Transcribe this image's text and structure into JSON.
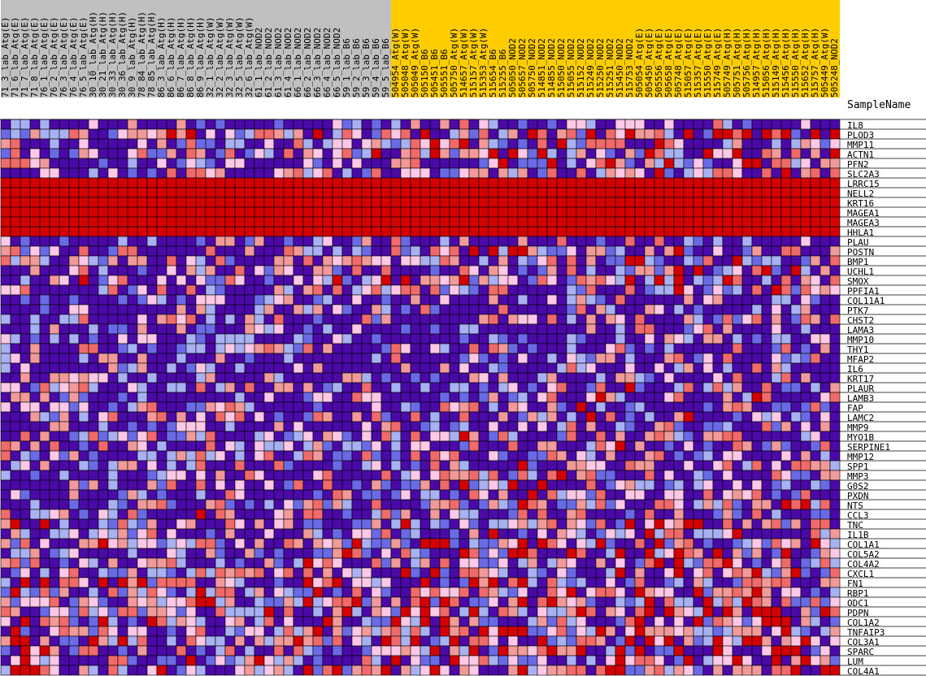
{
  "chart_data": {
    "type": "heatmap",
    "row_header": "SampleName",
    "columns": [
      {
        "name": "71_3_lab_Atg(E)",
        "group": "gray"
      },
      {
        "name": "71_6_lab_Atg(E)",
        "group": "gray"
      },
      {
        "name": "71_7_lab_Atg(E)",
        "group": "gray"
      },
      {
        "name": "71_8_lab_Atg(E)",
        "group": "gray"
      },
      {
        "name": "76_1_lab_Atg(E)",
        "group": "gray"
      },
      {
        "name": "76_2_lab_Atg(E)",
        "group": "gray"
      },
      {
        "name": "76_3_lab_Atg(E)",
        "group": "gray"
      },
      {
        "name": "76_4_lab_Atg(E)",
        "group": "gray"
      },
      {
        "name": "76_5_lab_Atg(E)",
        "group": "gray"
      },
      {
        "name": "30_10_lab_Atg(H)",
        "group": "gray"
      },
      {
        "name": "30_21_lab_Atg(H)",
        "group": "gray"
      },
      {
        "name": "30_33_lab_Atg(H)",
        "group": "gray"
      },
      {
        "name": "30_36_lab_Atg(H)",
        "group": "gray"
      },
      {
        "name": "30_9_lab_Atg(H)",
        "group": "gray"
      },
      {
        "name": "78_84_lab_Atg(H)",
        "group": "gray"
      },
      {
        "name": "78_85_lab_Atg(H)",
        "group": "gray"
      },
      {
        "name": "86_3_lab_Atg(H)",
        "group": "gray"
      },
      {
        "name": "86_6_lab_Atg(H)",
        "group": "gray"
      },
      {
        "name": "86_7_lab_Atg(H)",
        "group": "gray"
      },
      {
        "name": "86_8_lab_Atg(H)",
        "group": "gray"
      },
      {
        "name": "86_9_lab_Atg(H)",
        "group": "gray"
      },
      {
        "name": "32_1_lab_Atg(W)",
        "group": "gray"
      },
      {
        "name": "32_2_lab_Atg(W)",
        "group": "gray"
      },
      {
        "name": "32_3_lab_Atg(W)",
        "group": "gray"
      },
      {
        "name": "32_5_lab_Atg(W)",
        "group": "gray"
      },
      {
        "name": "32_6_lab_Atg(W)",
        "group": "gray"
      },
      {
        "name": "61_1_lab_NOD2",
        "group": "gray"
      },
      {
        "name": "61_2_lab_NOD2",
        "group": "gray"
      },
      {
        "name": "61_3_lab_NOD2",
        "group": "gray"
      },
      {
        "name": "61_4_lab_NOD2",
        "group": "gray"
      },
      {
        "name": "66_1_lab_NOD2",
        "group": "gray"
      },
      {
        "name": "66_2_lab_NOD2",
        "group": "gray"
      },
      {
        "name": "66_3_lab_NOD2",
        "group": "gray"
      },
      {
        "name": "66_4_lab_NOD2",
        "group": "gray"
      },
      {
        "name": "66_5_lab_NOD2",
        "group": "gray"
      },
      {
        "name": "59_1_lab_B6",
        "group": "gray"
      },
      {
        "name": "59_2_lab_B6",
        "group": "gray"
      },
      {
        "name": "59_3_lab_B6",
        "group": "gray"
      },
      {
        "name": "59_4_lab_B6",
        "group": "gray"
      },
      {
        "name": "59_5_lab_B6",
        "group": "gray"
      },
      {
        "name": "504954_Atg(W)",
        "group": "gold"
      },
      {
        "name": "505048_Atg(W)",
        "group": "gold"
      },
      {
        "name": "505049_Atg(W)",
        "group": "gold"
      },
      {
        "name": "505150_B6",
        "group": "gold"
      },
      {
        "name": "505451_B6",
        "group": "gold"
      },
      {
        "name": "505551_B6",
        "group": "gold"
      },
      {
        "name": "505750_Atg(W)",
        "group": "gold"
      },
      {
        "name": "514657_Atg(W)",
        "group": "gold"
      },
      {
        "name": "515157_Atg(W)",
        "group": "gold"
      },
      {
        "name": "515353_Atg(W)",
        "group": "gold"
      },
      {
        "name": "515654_B6",
        "group": "gold"
      },
      {
        "name": "515255_B6",
        "group": "gold"
      },
      {
        "name": "505050_NOD2",
        "group": "gold"
      },
      {
        "name": "505657_NOD2",
        "group": "gold"
      },
      {
        "name": "505750_NOD2",
        "group": "gold"
      },
      {
        "name": "514851_NOD2",
        "group": "gold"
      },
      {
        "name": "514855_NOD2",
        "group": "gold"
      },
      {
        "name": "515050_NOD2",
        "group": "gold"
      },
      {
        "name": "515055_NOD2",
        "group": "gold"
      },
      {
        "name": "515152_NOD2",
        "group": "gold"
      },
      {
        "name": "515249_NOD2",
        "group": "gold"
      },
      {
        "name": "515250_NOD2",
        "group": "gold"
      },
      {
        "name": "515251_NOD2",
        "group": "gold"
      },
      {
        "name": "515450_NOD2",
        "group": "gold"
      },
      {
        "name": "515753_NOD2",
        "group": "gold"
      },
      {
        "name": "505054_Atg(E)",
        "group": "gold"
      },
      {
        "name": "505450_Atg(E)",
        "group": "gold"
      },
      {
        "name": "505556_Atg(E)",
        "group": "gold"
      },
      {
        "name": "505658_Atg(E)",
        "group": "gold"
      },
      {
        "name": "505748_Atg(E)",
        "group": "gold"
      },
      {
        "name": "515057_Atg(E)",
        "group": "gold"
      },
      {
        "name": "515357_Atg(E)",
        "group": "gold"
      },
      {
        "name": "515550_Atg(E)",
        "group": "gold"
      },
      {
        "name": "515749_Atg(E)",
        "group": "gold"
      },
      {
        "name": "505749_Atg(H)",
        "group": "gold"
      },
      {
        "name": "505751_Atg(H)",
        "group": "gold"
      },
      {
        "name": "505756_Atg(H)",
        "group": "gold"
      },
      {
        "name": "514957_Atg(H)",
        "group": "gold"
      },
      {
        "name": "515056_Atg(H)",
        "group": "gold"
      },
      {
        "name": "515149_Atg(H)",
        "group": "gold"
      },
      {
        "name": "515456_Atg(H)",
        "group": "gold"
      },
      {
        "name": "515550_Atg(H)",
        "group": "gold"
      },
      {
        "name": "515652_Atg(H)",
        "group": "gold"
      },
      {
        "name": "515757_Atg(H)",
        "group": "gold"
      },
      {
        "name": "505449_Atg(W)",
        "group": "gold"
      },
      {
        "name": "505248_NOD2",
        "group": "gold"
      }
    ],
    "rows": [
      "IL8",
      "PLOD3",
      "MMP11",
      "ACTN1",
      "PFN2",
      "SLC2A3",
      "LRRC15",
      "NELL2",
      "KRT16",
      "MAGEA1",
      "MAGEA3",
      "HHLA1",
      "PLAU",
      "POSTN",
      "BMP1",
      "UCHL1",
      "SMOX",
      "PPFIA1",
      "COL11A1",
      "PTK7",
      "CHST2",
      "LAMA3",
      "MMP10",
      "THY1",
      "MFAP2",
      "IL6",
      "KRT17",
      "PLAUR",
      "LAMB3",
      "FAP",
      "LAMC2",
      "MMP9",
      "MYO1B",
      "SERPINE1",
      "MMP12",
      "SPP1",
      "MMP3",
      "G0S2",
      "PXDN",
      "NTS",
      "CCL3",
      "TNC",
      "IL1B",
      "COL1A1",
      "COL5A2",
      "COL4A2",
      "CXCL1",
      "FN1",
      "RBP1",
      "ODC1",
      "PDPN",
      "COL1A2",
      "TNFAIP3",
      "COL3A1",
      "SPARC",
      "LUM",
      "COL4A1"
    ],
    "value_levels": [
      "#4b0aa8",
      "#6a6ae6",
      "#a8b2f2",
      "#ffc8e6",
      "#f29a9a",
      "#f06a6a",
      "#d40000"
    ],
    "row_profiles": [
      0.05,
      0.55,
      0.45,
      0.4,
      0.45,
      0.35,
      1,
      1,
      1,
      1,
      1,
      1,
      0.12,
      0.4,
      0.35,
      0.35,
      0.45,
      0.4,
      0.1,
      0.08,
      0.2,
      0.08,
      0.05,
      0.3,
      0.2,
      0.08,
      0.12,
      0.3,
      0.3,
      0.25,
      0.3,
      0.25,
      0.3,
      0.25,
      0.25,
      0.3,
      0.3,
      0.35,
      0.25,
      0.3,
      0.4,
      0.45,
      0.4,
      0.5,
      0.5,
      0.55,
      0.45,
      0.5,
      0.5,
      0.5,
      0.5,
      0.55,
      0.55,
      0.55,
      0.55,
      0.55,
      0.6
    ],
    "colors": {
      "gray_group": "#c0c0c0",
      "gold_group": "#ffcc00",
      "low": "#4b0aa8",
      "high": "#d40000",
      "cell_border": "#000000"
    }
  }
}
